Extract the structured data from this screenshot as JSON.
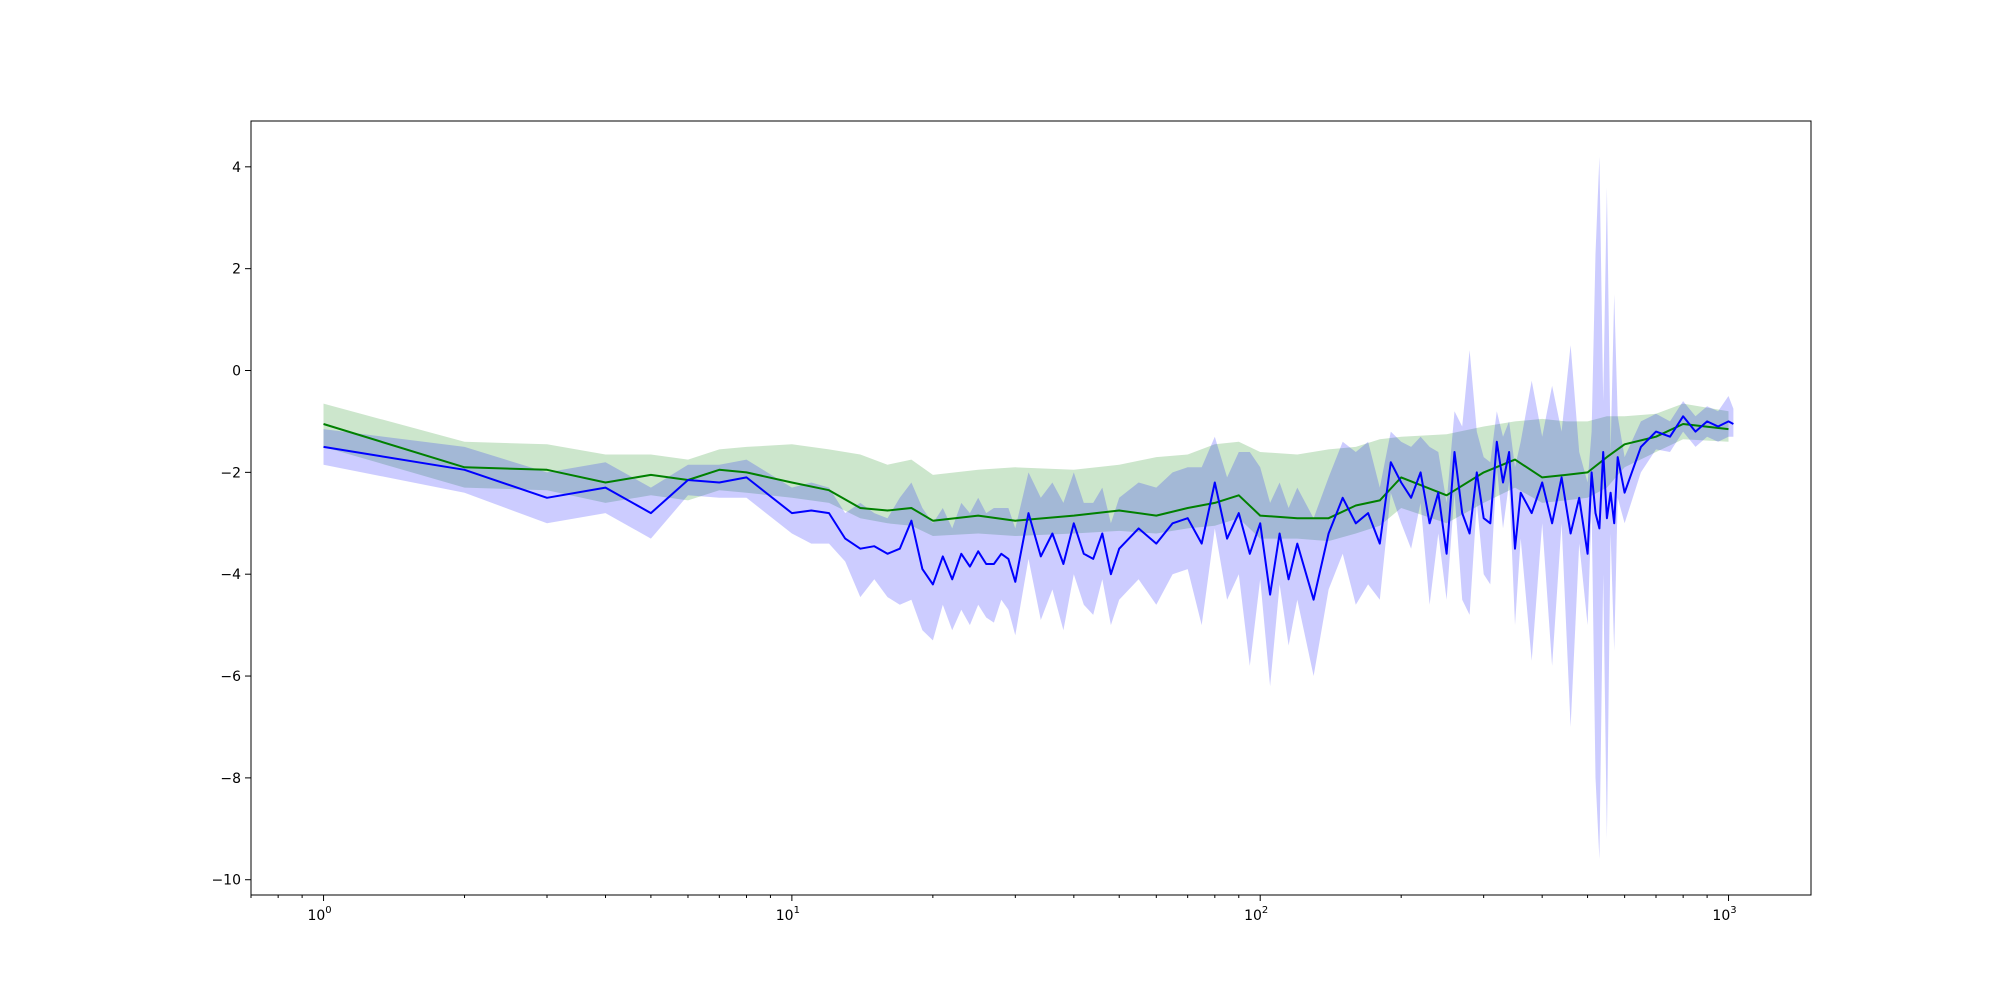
{
  "chart_data": {
    "type": "line",
    "title": "",
    "xlabel": "",
    "ylabel": "",
    "xscale": "log",
    "xlim": [
      0.7,
      1500
    ],
    "ylim": [
      -10.3,
      4.9
    ],
    "x_ticks": [
      {
        "value": 1,
        "base": "10",
        "exp": "0"
      },
      {
        "value": 10,
        "base": "10",
        "exp": "1"
      },
      {
        "value": 100,
        "base": "10",
        "exp": "2"
      },
      {
        "value": 1000,
        "base": "10",
        "exp": "3"
      }
    ],
    "y_ticks": [
      4,
      2,
      0,
      -2,
      -4,
      -6,
      -8,
      -10
    ],
    "y_tick_labels": [
      "4",
      "2",
      "0",
      "−2",
      "−4",
      "−6",
      "−8",
      "−10"
    ],
    "grid": false,
    "legend": "none",
    "series": [
      {
        "color": "#008000",
        "band_color": "#008000",
        "band_opacity": 0.2,
        "x": [
          1,
          2,
          3,
          4,
          5,
          6,
          7,
          8,
          10,
          12,
          14,
          16,
          18,
          20,
          25,
          30,
          40,
          50,
          60,
          70,
          80,
          90,
          100,
          120,
          140,
          160,
          180,
          200,
          250,
          300,
          350,
          400,
          450,
          500,
          550,
          600,
          700,
          800,
          1000
        ],
        "mean": [
          -1.05,
          -1.9,
          -1.95,
          -2.2,
          -2.05,
          -2.15,
          -1.95,
          -2.0,
          -2.2,
          -2.35,
          -2.7,
          -2.75,
          -2.7,
          -2.95,
          -2.85,
          -2.95,
          -2.85,
          -2.75,
          -2.85,
          -2.7,
          -2.6,
          -2.45,
          -2.85,
          -2.9,
          -2.9,
          -2.65,
          -2.55,
          -2.1,
          -2.45,
          -2.0,
          -1.75,
          -2.1,
          -2.05,
          -2.0,
          -1.7,
          -1.45,
          -1.3,
          -1.05,
          -1.15
        ],
        "lower": [
          -1.5,
          -2.3,
          -2.35,
          -2.6,
          -2.45,
          -2.55,
          -2.35,
          -2.4,
          -2.5,
          -2.6,
          -2.9,
          -3.0,
          -3.05,
          -3.25,
          -3.2,
          -3.25,
          -3.2,
          -3.15,
          -3.2,
          -3.1,
          -3.05,
          -2.9,
          -3.3,
          -3.3,
          -3.35,
          -3.2,
          -3.05,
          -2.7,
          -3.0,
          -2.6,
          -2.3,
          -2.6,
          -2.55,
          -2.5,
          -2.3,
          -1.9,
          -1.6,
          -1.35,
          -1.4
        ],
        "upper": [
          -0.65,
          -1.4,
          -1.45,
          -1.65,
          -1.65,
          -1.75,
          -1.55,
          -1.5,
          -1.45,
          -1.55,
          -1.65,
          -1.85,
          -1.75,
          -2.05,
          -1.95,
          -1.9,
          -1.95,
          -1.85,
          -1.7,
          -1.65,
          -1.45,
          -1.4,
          -1.6,
          -1.65,
          -1.55,
          -1.5,
          -1.35,
          -1.3,
          -1.25,
          -1.1,
          -1.0,
          -0.95,
          -1.0,
          -1.0,
          -0.9,
          -0.9,
          -0.85,
          -0.65,
          -0.8
        ]
      },
      {
        "color": "#0000ff",
        "band_color": "#0000ff",
        "band_opacity": 0.2,
        "x": [
          1,
          2,
          3,
          4,
          5,
          6,
          7,
          8,
          10,
          11,
          12,
          13,
          14,
          15,
          16,
          17,
          18,
          19,
          20,
          21,
          22,
          23,
          24,
          25,
          26,
          27,
          28,
          29,
          30,
          32,
          34,
          36,
          38,
          40,
          42,
          44,
          46,
          48,
          50,
          55,
          60,
          65,
          70,
          75,
          80,
          85,
          90,
          95,
          100,
          105,
          110,
          115,
          120,
          130,
          140,
          150,
          160,
          170,
          180,
          190,
          200,
          210,
          220,
          230,
          240,
          250,
          260,
          270,
          280,
          290,
          300,
          310,
          320,
          330,
          340,
          350,
          360,
          380,
          400,
          420,
          440,
          460,
          480,
          500,
          510,
          520,
          530,
          540,
          550,
          560,
          570,
          580,
          600,
          650,
          700,
          750,
          800,
          850,
          900,
          950,
          1000,
          1024
        ],
        "mean": [
          -1.5,
          -1.95,
          -2.5,
          -2.3,
          -2.8,
          -2.15,
          -2.2,
          -2.1,
          -2.8,
          -2.75,
          -2.8,
          -3.3,
          -3.5,
          -3.45,
          -3.6,
          -3.5,
          -2.95,
          -3.9,
          -4.2,
          -3.65,
          -4.1,
          -3.6,
          -3.85,
          -3.55,
          -3.8,
          -3.8,
          -3.6,
          -3.7,
          -4.15,
          -2.8,
          -3.65,
          -3.2,
          -3.8,
          -3.0,
          -3.6,
          -3.7,
          -3.2,
          -4.0,
          -3.5,
          -3.1,
          -3.4,
          -3.0,
          -2.9,
          -3.4,
          -2.2,
          -3.3,
          -2.8,
          -3.6,
          -3.0,
          -4.4,
          -3.2,
          -4.1,
          -3.4,
          -4.5,
          -3.2,
          -2.5,
          -3.0,
          -2.8,
          -3.4,
          -1.8,
          -2.2,
          -2.5,
          -2.0,
          -3.0,
          -2.4,
          -3.6,
          -1.6,
          -2.8,
          -3.2,
          -2.0,
          -2.9,
          -3.0,
          -1.4,
          -2.2,
          -1.6,
          -3.5,
          -2.4,
          -2.8,
          -2.2,
          -3.0,
          -2.1,
          -3.2,
          -2.5,
          -3.6,
          -2.0,
          -2.8,
          -3.1,
          -1.6,
          -2.9,
          -2.4,
          -3.0,
          -1.7,
          -2.4,
          -1.5,
          -1.2,
          -1.3,
          -0.9,
          -1.2,
          -1.0,
          -1.1,
          -1.0,
          -1.05
        ],
        "lower": [
          -1.85,
          -2.4,
          -3.0,
          -2.8,
          -3.3,
          -2.45,
          -2.5,
          -2.5,
          -3.2,
          -3.4,
          -3.4,
          -3.75,
          -4.45,
          -4.1,
          -4.45,
          -4.6,
          -4.5,
          -5.1,
          -5.3,
          -4.6,
          -5.1,
          -4.7,
          -5.0,
          -4.6,
          -4.85,
          -4.95,
          -4.5,
          -4.7,
          -5.2,
          -3.7,
          -4.9,
          -4.3,
          -5.1,
          -4.0,
          -4.6,
          -4.8,
          -4.1,
          -5.0,
          -4.5,
          -4.1,
          -4.6,
          -4.0,
          -3.9,
          -5.0,
          -3.1,
          -4.5,
          -4.0,
          -5.8,
          -4.1,
          -6.2,
          -4.2,
          -5.4,
          -4.5,
          -6.0,
          -4.3,
          -3.6,
          -4.6,
          -4.2,
          -4.5,
          -2.4,
          -3.0,
          -3.5,
          -2.6,
          -4.6,
          -3.2,
          -4.5,
          -2.4,
          -4.5,
          -4.8,
          -2.6,
          -4.0,
          -4.2,
          -1.9,
          -3.1,
          -2.2,
          -5.0,
          -3.3,
          -5.7,
          -3.0,
          -5.8,
          -3.0,
          -7.0,
          -3.4,
          -5.0,
          -2.7,
          -8.0,
          -9.6,
          -4.0,
          -9.2,
          -3.2,
          -5.5,
          -2.5,
          -3.0,
          -2.0,
          -1.55,
          -1.6,
          -1.2,
          -1.5,
          -1.3,
          -1.4,
          -1.3,
          -1.3
        ],
        "upper": [
          -1.15,
          -1.5,
          -2.0,
          -1.8,
          -2.3,
          -1.85,
          -1.85,
          -1.75,
          -2.3,
          -2.2,
          -2.3,
          -2.8,
          -2.6,
          -2.8,
          -2.9,
          -2.5,
          -2.2,
          -2.7,
          -3.0,
          -2.7,
          -3.1,
          -2.6,
          -2.8,
          -2.5,
          -2.8,
          -2.7,
          -2.7,
          -2.7,
          -3.1,
          -2.0,
          -2.5,
          -2.2,
          -2.6,
          -2.0,
          -2.6,
          -2.6,
          -2.3,
          -3.0,
          -2.5,
          -2.2,
          -2.3,
          -2.0,
          -1.9,
          -1.9,
          -1.3,
          -2.1,
          -1.6,
          -1.6,
          -1.9,
          -2.6,
          -2.2,
          -2.7,
          -2.3,
          -2.9,
          -2.1,
          -1.4,
          -1.6,
          -1.4,
          -2.3,
          -1.2,
          -1.4,
          -1.5,
          -1.3,
          -1.5,
          -1.6,
          -2.6,
          -0.8,
          -1.1,
          0.4,
          -1.2,
          -1.7,
          -1.8,
          -0.8,
          -1.3,
          -1.0,
          -1.9,
          -1.4,
          -0.2,
          -1.3,
          -0.3,
          -1.2,
          0.5,
          -1.6,
          -2.2,
          -1.2,
          2.3,
          4.2,
          -0.6,
          3.6,
          -1.6,
          1.5,
          -0.9,
          -1.7,
          -1.0,
          -0.85,
          -1.0,
          -0.6,
          -0.9,
          -0.7,
          -0.8,
          -0.5,
          -0.75
        ]
      }
    ]
  }
}
